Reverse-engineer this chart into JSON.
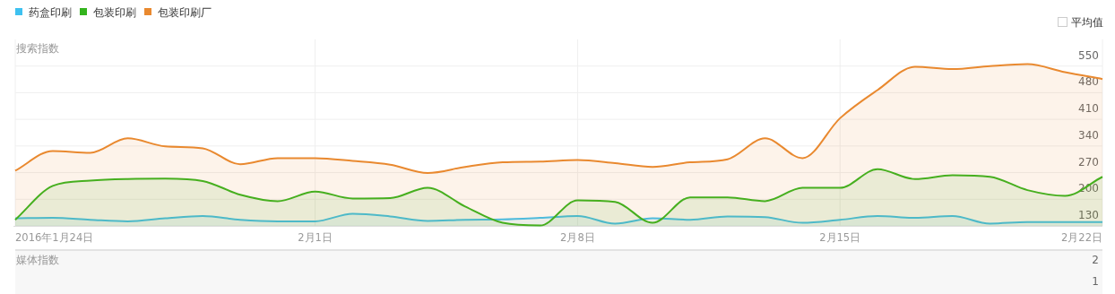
{
  "chart_data": [
    {
      "type": "area",
      "ylabel": "搜索指数",
      "legend": "top left",
      "grid": true,
      "marker": "none",
      "x": [
        "2016-01-24",
        "2016-01-25",
        "2016-01-26",
        "2016-01-27",
        "2016-01-28",
        "2016-01-29",
        "2016-01-30",
        "2016-01-31",
        "2016-02-01",
        "2016-02-02",
        "2016-02-03",
        "2016-02-04",
        "2016-02-05",
        "2016-02-06",
        "2016-02-07",
        "2016-02-08",
        "2016-02-09",
        "2016-02-10",
        "2016-02-11",
        "2016-02-12",
        "2016-02-13",
        "2016-02-14",
        "2016-02-15",
        "2016-02-16",
        "2016-02-17",
        "2016-02-18",
        "2016-02-19",
        "2016-02-20",
        "2016-02-21",
        "2016-02-22"
      ],
      "xlim": [
        "2016-01-24",
        "2016-02-22"
      ],
      "xticks": [
        {
          "value": "2016-01-24",
          "label": "2016年1月24日"
        },
        {
          "value": "2016-02-01",
          "label": "2月1日"
        },
        {
          "value": "2016-02-08",
          "label": "2月8日"
        },
        {
          "value": "2016-02-15",
          "label": "2月15日"
        },
        {
          "value": "2016-02-22",
          "label": "2月22日"
        }
      ],
      "ylim": [
        130,
        620
      ],
      "yticks": [
        130,
        200,
        270,
        340,
        410,
        480,
        550
      ],
      "annotations": [
        "平均值"
      ],
      "series": [
        {
          "name": "药盒印刷",
          "color": "#3ec1f0",
          "values": [
            150,
            151,
            146,
            142,
            150,
            156,
            146,
            142,
            142,
            162,
            155,
            143,
            146,
            147,
            151,
            156,
            136,
            150,
            146,
            155,
            153,
            138,
            146,
            156,
            151,
            156,
            136,
            140,
            140,
            140
          ]
        },
        {
          "name": "包装印刷",
          "color": "#34b41d",
          "values": [
            146,
            235,
            249,
            253,
            254,
            248,
            212,
            195,
            220,
            202,
            203,
            230,
            181,
            138,
            131,
            197,
            193,
            138,
            205,
            205,
            195,
            230,
            230,
            279,
            253,
            263,
            259,
            224,
            209,
            259
          ]
        },
        {
          "name": "包装印刷厂",
          "color": "#e9892f",
          "values": [
            275,
            327,
            322,
            360,
            339,
            334,
            292,
            308,
            308,
            301,
            291,
            269,
            285,
            297,
            299,
            303,
            295,
            285,
            297,
            305,
            360,
            308,
            413,
            487,
            548,
            542,
            550,
            555,
            534,
            516
          ]
        }
      ]
    },
    {
      "type": "line",
      "ylabel": "媒体指数",
      "xlim": [
        "2016-01-24",
        "2016-02-22"
      ],
      "ylim": [
        0.4,
        2.4
      ],
      "yticks": [
        1,
        2
      ],
      "tick_labels": "y"
    }
  ]
}
